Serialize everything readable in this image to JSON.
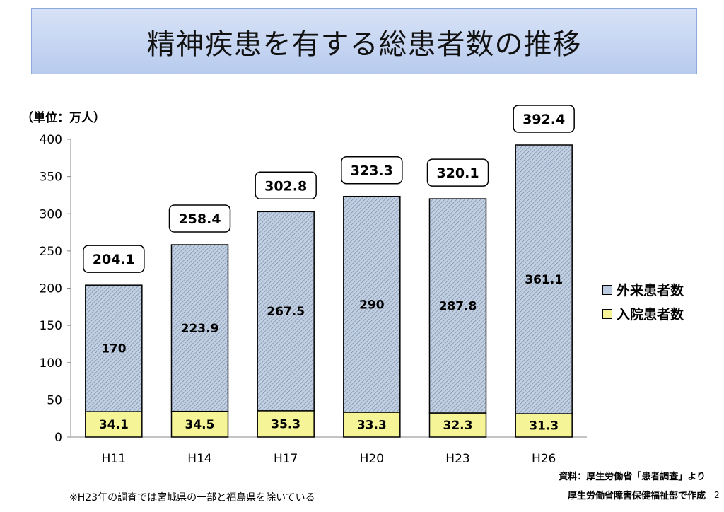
{
  "title": "精神疾患を有する総患者数の推移",
  "unit_label": "（単位：万人）",
  "legend": {
    "outpatient": "外来患者数",
    "inpatient": "入院患者数"
  },
  "colors": {
    "outpatient_fill": "#b9c9de",
    "outpatient_hatch": "#6f87a6",
    "inpatient_fill": "#f5f598",
    "title_bg": "#c8d7f2"
  },
  "source_line1": "資料：厚生労働省「患者調査」より",
  "source_line2": "厚生労働省障害保健福祉部で作成",
  "note": "※H23年の調査では宮城県の一部と福島県を除いている",
  "page_number": "2",
  "chart_data": {
    "type": "bar",
    "stacked": true,
    "categories": [
      "H11",
      "H14",
      "H17",
      "H20",
      "H23",
      "H26"
    ],
    "series": [
      {
        "name": "入院患者数",
        "values": [
          34.1,
          34.5,
          35.3,
          33.3,
          32.3,
          31.3
        ]
      },
      {
        "name": "外来患者数",
        "values": [
          170,
          223.9,
          267.5,
          290,
          287.8,
          361.1
        ]
      }
    ],
    "totals": [
      204.1,
      258.4,
      302.8,
      323.3,
      320.1,
      392.4
    ],
    "ylim": [
      0,
      400
    ],
    "yticks": [
      0,
      50,
      100,
      150,
      200,
      250,
      300,
      350,
      400
    ],
    "grid": false,
    "legend_position": "right"
  }
}
